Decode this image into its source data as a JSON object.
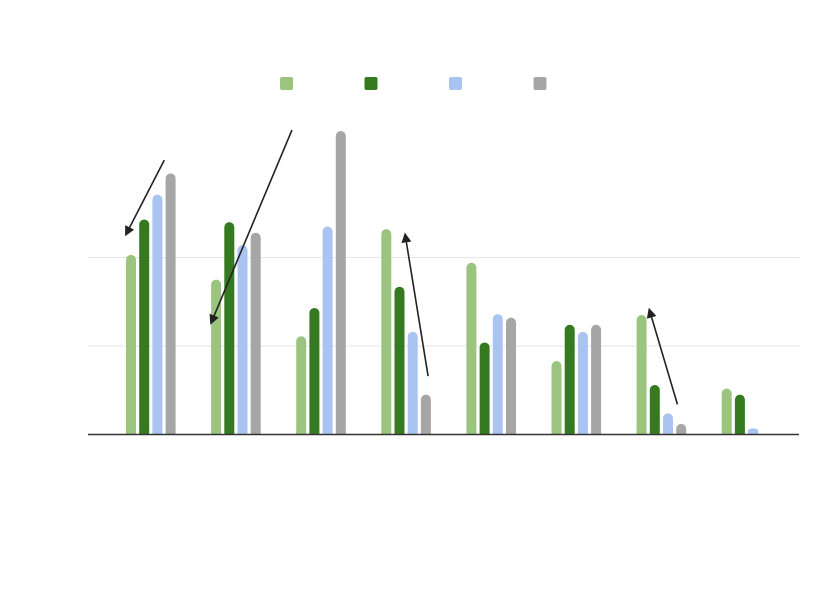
{
  "chart_data": {
    "type": "bar",
    "title": "",
    "xlabel": "",
    "ylabel": "",
    "categories": [
      "",
      "",
      "",
      "",
      "",
      "",
      "",
      ""
    ],
    "ylim": [
      0,
      300
    ],
    "yticks": [
      0,
      100,
      200
    ],
    "grid": true,
    "legend_position": "top",
    "series": [
      {
        "color": "#9bc57f",
        "values": [
          203,
          175,
          111,
          232,
          194,
          83,
          135,
          52
        ]
      },
      {
        "color": "#357a20",
        "values": [
          243,
          240,
          143,
          167,
          104,
          124,
          56,
          45
        ]
      },
      {
        "color": "#a9c4f0",
        "values": [
          271,
          214,
          235,
          116,
          136,
          116,
          24,
          7
        ]
      },
      {
        "color": "#a6a6a6",
        "values": [
          295,
          228,
          343,
          45,
          132,
          124,
          12,
          0
        ]
      }
    ],
    "annotations": [
      {
        "type": "arrow",
        "from": {
          "category_index": 0.45,
          "y": 310
        },
        "to": {
          "category_index": 0.0,
          "y": 226
        }
      },
      {
        "type": "arrow",
        "from": {
          "category_index": 1.95,
          "y": 344
        },
        "to": {
          "category_index": 1.0,
          "y": 126
        }
      },
      {
        "type": "arrow",
        "from": {
          "category_index": 3.55,
          "y": 66
        },
        "to": {
          "category_index": 3.28,
          "y": 226
        }
      },
      {
        "type": "arrow",
        "from": {
          "category_index": 6.48,
          "y": 34
        },
        "to": {
          "category_index": 6.15,
          "y": 141
        }
      }
    ]
  }
}
